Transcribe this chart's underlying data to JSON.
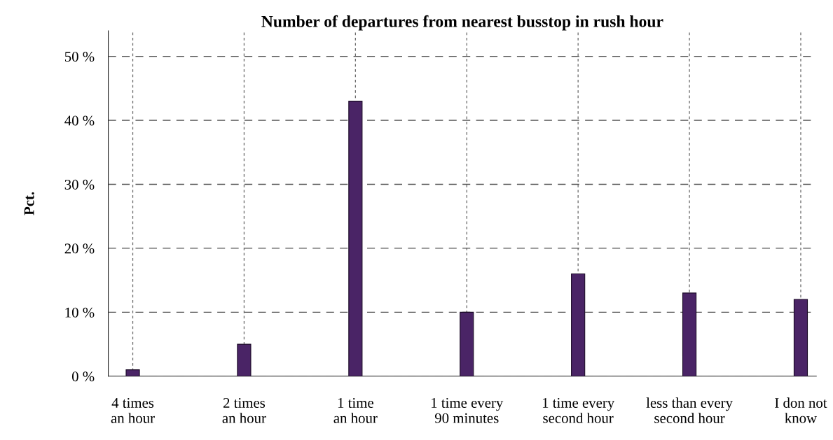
{
  "chart_data": {
    "type": "bar",
    "title": "Number of departures from nearest busstop in rush hour",
    "ylabel": "Pct.",
    "categories": [
      "4 times\nan hour",
      "2 times\nan hour",
      "1 time\nan hour",
      "1 time every\n90 minutes",
      "1 time every\nsecond hour",
      "less than every\nsecond hour",
      "I don not\nknow"
    ],
    "values": [
      1,
      5,
      43,
      10,
      16,
      13,
      12
    ],
    "color": "#4a2466",
    "ylim": [
      0,
      54
    ],
    "yticks": [
      {
        "value": 0,
        "label": "0 %"
      },
      {
        "value": 10,
        "label": "10 %"
      },
      {
        "value": 20,
        "label": "20 %"
      },
      {
        "value": 30,
        "label": "30 %"
      },
      {
        "value": 40,
        "label": "40 %"
      },
      {
        "value": 50,
        "label": "50 %"
      }
    ],
    "grid": true,
    "legend": false
  }
}
